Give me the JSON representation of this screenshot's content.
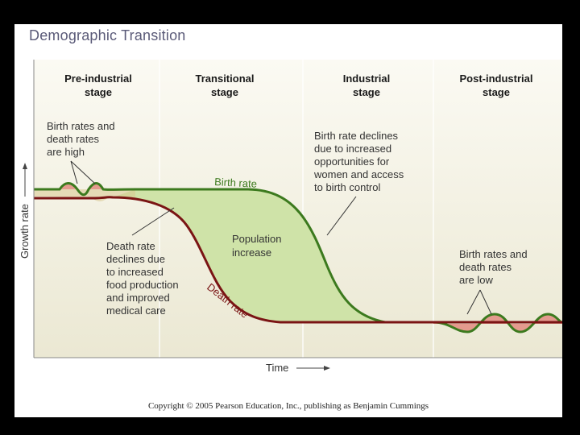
{
  "title": "Demographic Transition",
  "stages": [
    {
      "line1": "Pre-industrial",
      "line2": "stage"
    },
    {
      "line1": "Transitional",
      "line2": "stage"
    },
    {
      "line1": "Industrial",
      "line2": "stage"
    },
    {
      "line1": "Post-industrial",
      "line2": "stage"
    }
  ],
  "axes": {
    "y_label": "Growth rate",
    "x_label": "Time"
  },
  "curves": {
    "birth_rate": "Birth rate",
    "death_rate": "Death rate"
  },
  "annotations": {
    "high_rates": [
      "Birth rates and",
      "death rates",
      "are high"
    ],
    "death_decline": [
      "Death rate",
      "declines due",
      "to increased",
      "food production",
      "and improved",
      "medical care"
    ],
    "population_increase": [
      "Population",
      "increase"
    ],
    "birth_decline": [
      "Birth rate declines",
      "due to increased",
      "opportunities for",
      "women and access",
      "to birth control"
    ],
    "low_rates": [
      "Birth rates and",
      "death rates",
      "are low"
    ]
  },
  "copyright": "Copyright © 2005 Pearson Education, Inc., publishing as Benjamin Cummings",
  "colors": {
    "birth": "#3c7a1e",
    "death": "#7a1414",
    "fill_green": "#cfe3a8",
    "fill_red": "#e49a8e",
    "panel": "#f1efe1"
  }
}
